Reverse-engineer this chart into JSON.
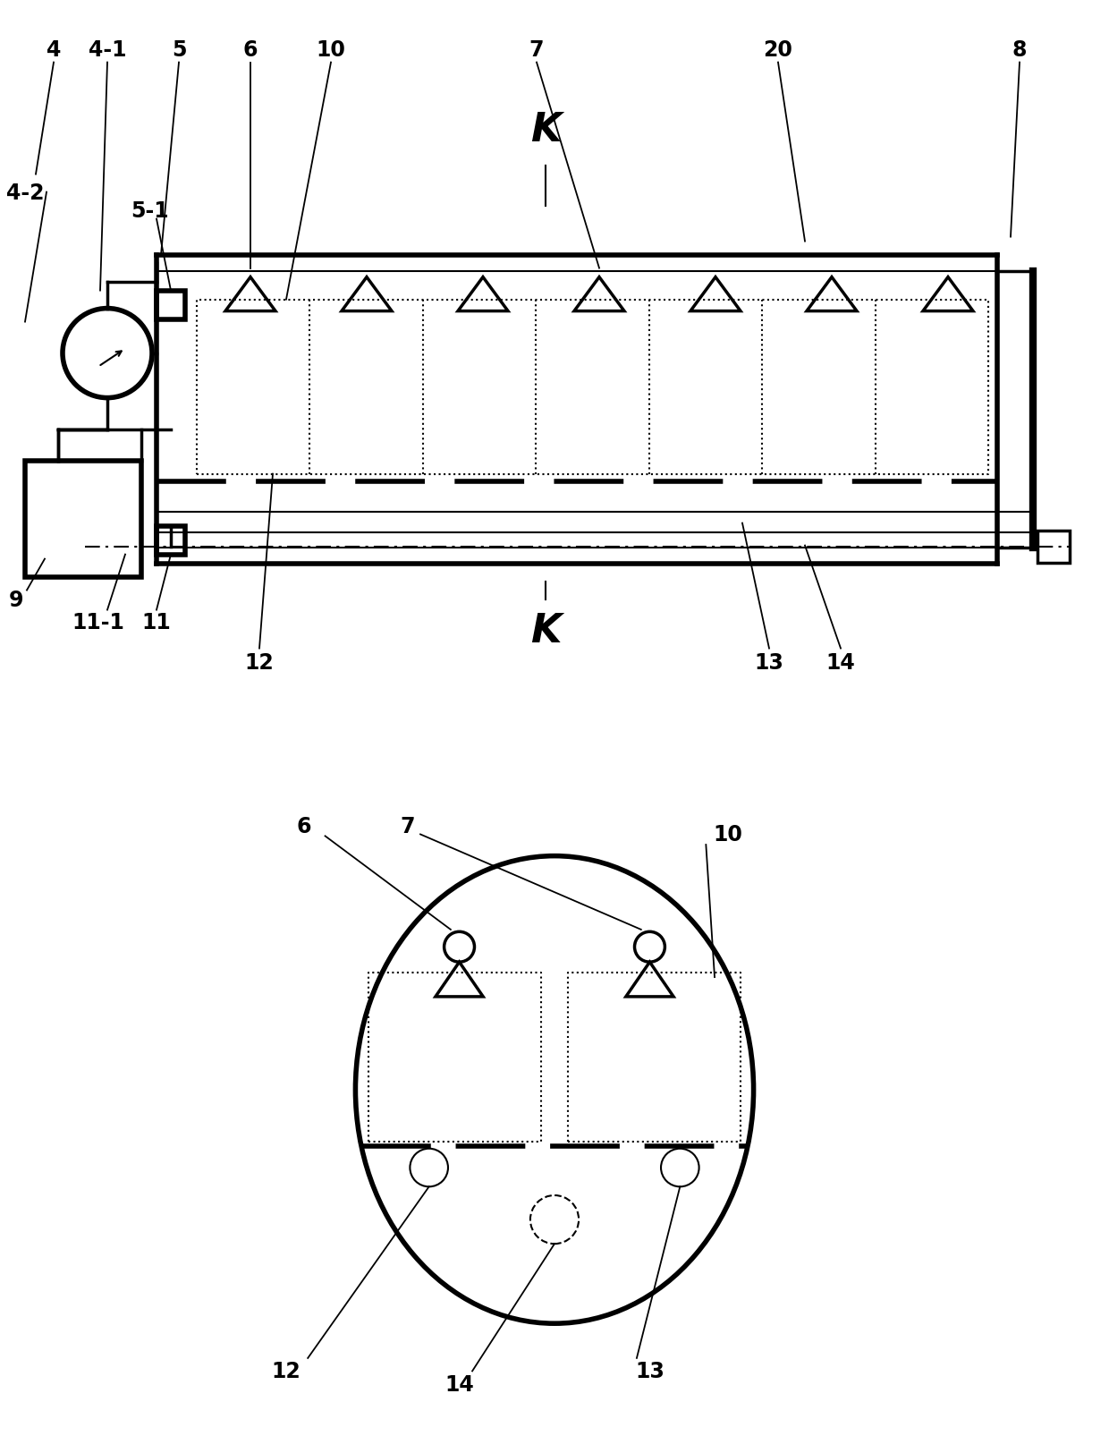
{
  "bg_color": "#ffffff",
  "line_color": "#000000",
  "figsize": [
    12.4,
    16.06
  ],
  "dpi": 100
}
